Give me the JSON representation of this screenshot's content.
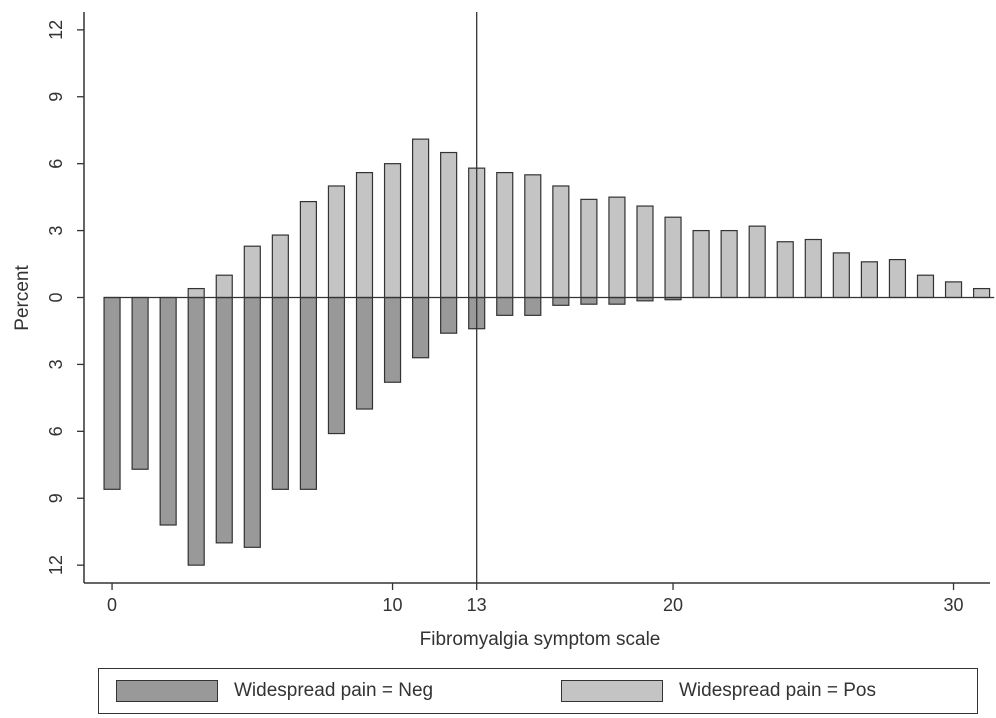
{
  "chart_data": {
    "type": "bar",
    "xlabel": "Fibromyalgia symptom scale",
    "ylabel": "Percent",
    "xlim": [
      -1,
      31.3
    ],
    "ylim": [
      -12.8,
      12.8
    ],
    "x_ticks": [
      0,
      10,
      13,
      20,
      30
    ],
    "y_ticks": [
      12,
      9,
      6,
      3,
      0,
      3,
      6,
      9,
      12
    ],
    "y_tick_values": [
      12,
      9,
      6,
      3,
      0,
      -3,
      -6,
      -9,
      -12
    ],
    "reference_line_x": 13,
    "grid": false,
    "legend_position": "bottom",
    "x": [
      0,
      1,
      2,
      3,
      4,
      5,
      6,
      7,
      8,
      9,
      10,
      11,
      12,
      13,
      14,
      15,
      16,
      17,
      18,
      19,
      20,
      21,
      22,
      23,
      24,
      25,
      26,
      27,
      28,
      29,
      30,
      31
    ],
    "series": [
      {
        "name": "Widespread pain = Neg",
        "color": "#999999",
        "direction": "down",
        "values": [
          8.6,
          7.7,
          10.2,
          12.0,
          11.0,
          11.2,
          8.6,
          8.6,
          6.1,
          5.0,
          3.8,
          2.7,
          1.6,
          1.4,
          0.8,
          0.8,
          0.35,
          0.3,
          0.3,
          0.15,
          0.1,
          0,
          0,
          0,
          0,
          0,
          0,
          0,
          0,
          0,
          0,
          0
        ]
      },
      {
        "name": "Widespread pain = Pos",
        "color": "#c4c4c4",
        "direction": "up",
        "values": [
          0,
          0,
          0,
          0.4,
          1.0,
          2.3,
          2.8,
          4.3,
          5.0,
          5.6,
          6.0,
          7.1,
          6.5,
          5.8,
          5.6,
          5.5,
          5.0,
          4.4,
          4.5,
          4.1,
          3.6,
          3.0,
          3.0,
          3.2,
          2.5,
          2.6,
          2.0,
          1.6,
          1.7,
          1.0,
          0.7,
          0.4
        ]
      }
    ]
  },
  "legend": {
    "neg_label": "Widespread pain = Neg",
    "pos_label": "Widespread pain = Pos",
    "neg_color": "#999999",
    "pos_color": "#c4c4c4"
  }
}
